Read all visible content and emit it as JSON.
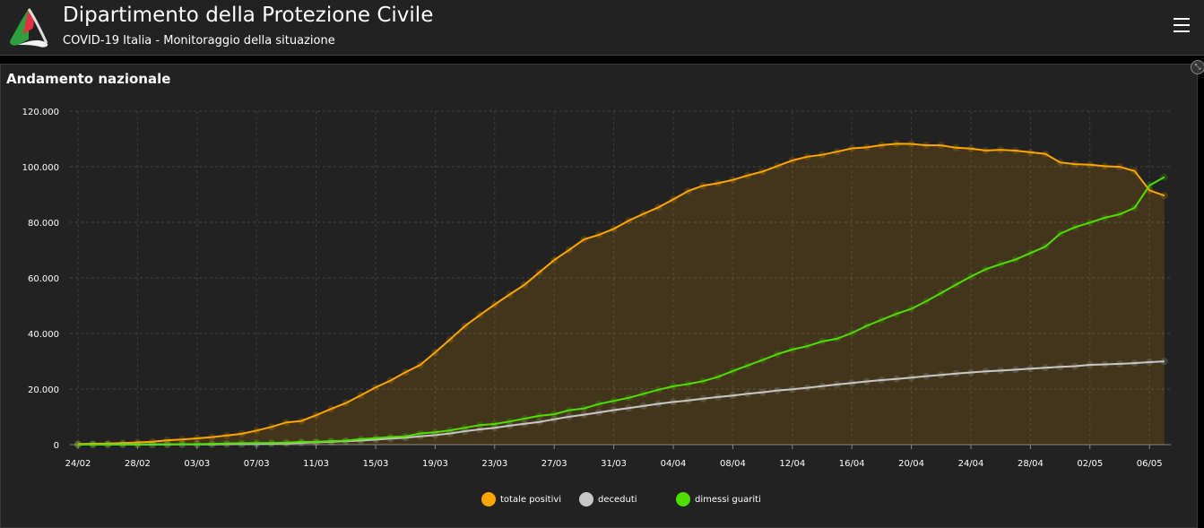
{
  "header": {
    "title": "Dipartimento della Protezione Civile",
    "subtitle": "COVID-19 Italia - Monitoraggio della situazione"
  },
  "panel": {
    "title": "Andamento nazionale"
  },
  "chart_data": {
    "type": "line",
    "title": "Andamento nazionale",
    "xlabel": "",
    "ylabel": "",
    "ylim": [
      0,
      120000
    ],
    "y_ticks": [
      0,
      20000,
      40000,
      60000,
      80000,
      100000,
      120000
    ],
    "y_tick_labels": [
      "0",
      "20.000",
      "40.000",
      "60.000",
      "80.000",
      "100.000",
      "120.000"
    ],
    "x_tick_labels": [
      "24/02",
      "28/02",
      "03/03",
      "07/03",
      "11/03",
      "15/03",
      "19/03",
      "23/03",
      "27/03",
      "31/03",
      "04/04",
      "08/04",
      "12/04",
      "16/04",
      "20/04",
      "24/04",
      "28/04",
      "02/05",
      "06/05"
    ],
    "x_tick_every": 4,
    "grid": true,
    "legend_placement": "bottom",
    "x": [
      "24/02",
      "25/02",
      "26/02",
      "27/02",
      "28/02",
      "29/02",
      "01/03",
      "02/03",
      "03/03",
      "04/03",
      "05/03",
      "06/03",
      "07/03",
      "08/03",
      "09/03",
      "10/03",
      "11/03",
      "12/03",
      "13/03",
      "14/03",
      "15/03",
      "16/03",
      "17/03",
      "18/03",
      "19/03",
      "20/03",
      "21/03",
      "22/03",
      "23/03",
      "24/03",
      "25/03",
      "26/03",
      "27/03",
      "28/03",
      "29/03",
      "30/03",
      "31/03",
      "01/04",
      "02/04",
      "03/04",
      "04/04",
      "05/04",
      "06/04",
      "07/04",
      "08/04",
      "09/04",
      "10/04",
      "11/04",
      "12/04",
      "13/04",
      "14/04",
      "15/04",
      "16/04",
      "17/04",
      "18/04",
      "19/04",
      "20/04",
      "21/04",
      "22/04",
      "23/04",
      "24/04",
      "25/04",
      "26/04",
      "27/04",
      "28/04",
      "29/04",
      "30/04",
      "01/05",
      "02/05",
      "03/05",
      "04/05",
      "05/05",
      "06/05",
      "07/05"
    ],
    "series": [
      {
        "name": "totale positivi",
        "color": "#ffa500",
        "fill": true,
        "values": [
          221,
          311,
          385,
          588,
          821,
          1049,
          1577,
          1835,
          2263,
          2706,
          3296,
          3916,
          5061,
          6387,
          7985,
          8514,
          10590,
          12839,
          14955,
          17750,
          20603,
          23073,
          26062,
          28710,
          33190,
          37860,
          42681,
          46638,
          50418,
          54030,
          57521,
          62013,
          66414,
          70065,
          73880,
          75528,
          77635,
          80572,
          83049,
          85388,
          88274,
          91246,
          93187,
          94067,
          95262,
          96877,
          98273,
          100269,
          102253,
          103616,
          104291,
          105418,
          106607,
          106962,
          107771,
          108257,
          108237,
          107709,
          107699,
          106848,
          106527,
          105847,
          106103,
          105813,
          105205,
          104657,
          101551,
          100943,
          100704,
          100179,
          99980,
          98467,
          91528,
          89624
        ]
      },
      {
        "name": "deceduti",
        "color": "#c8c8c8",
        "fill": false,
        "values": [
          7,
          10,
          12,
          17,
          21,
          29,
          34,
          52,
          79,
          107,
          148,
          197,
          233,
          366,
          463,
          631,
          827,
          1016,
          1266,
          1441,
          1809,
          2158,
          2503,
          2978,
          3405,
          4032,
          4825,
          5476,
          6077,
          6820,
          7503,
          8165,
          9134,
          10023,
          10779,
          11591,
          12428,
          13155,
          13915,
          14681,
          15362,
          15887,
          16523,
          17127,
          17669,
          18279,
          18849,
          19468,
          19899,
          20465,
          21067,
          21645,
          22170,
          22745,
          23227,
          23660,
          24114,
          24648,
          25085,
          25549,
          25969,
          26384,
          26644,
          26977,
          27359,
          27682,
          27967,
          28236,
          28710,
          28884,
          29079,
          29315,
          29684,
          29958
        ]
      },
      {
        "name": "dimessi guariti",
        "color": "#4fe000",
        "fill": false,
        "values": [
          1,
          1,
          3,
          45,
          46,
          50,
          83,
          149,
          160,
          276,
          414,
          523,
          589,
          622,
          724,
          1004,
          1045,
          1258,
          1439,
          1966,
          2335,
          2749,
          2941,
          4025,
          4440,
          5129,
          6072,
          7024,
          7432,
          8326,
          9362,
          10361,
          10950,
          12384,
          13030,
          14620,
          15729,
          16847,
          18278,
          19758,
          20996,
          21815,
          22837,
          24392,
          26491,
          28470,
          30455,
          32534,
          34211,
          35435,
          37130,
          38092,
          40164,
          42727,
          44927,
          47055,
          48877,
          51600,
          54543,
          57576,
          60498,
          63120,
          64928,
          66624,
          68941,
          71252,
          75945,
          78249,
          79914,
          81654,
          82879,
          85231,
          93245,
          96276
        ]
      }
    ]
  }
}
